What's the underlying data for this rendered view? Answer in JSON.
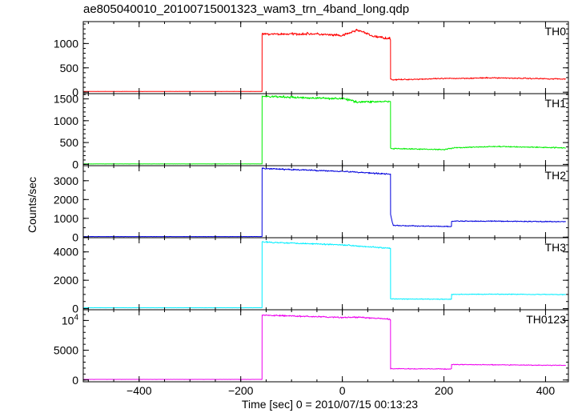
{
  "title": "ae805040010_20100715001323_wam3_trn_4band_long.qdp",
  "chart_data": {
    "type": "line",
    "xlabel": "Time [sec] 0 = 2010/07/15 00:13:23",
    "ylabel": "Counts/sec",
    "xlim": [
      -510,
      445
    ],
    "xticks": [
      {
        "value": -400,
        "label": "−400"
      },
      {
        "value": -200,
        "label": "−200"
      },
      {
        "value": 0,
        "label": "0"
      },
      {
        "value": 200,
        "label": "200"
      },
      {
        "value": 400,
        "label": "400"
      }
    ],
    "grid": false,
    "panels": [
      {
        "name": "TH0",
        "color": "#ff0000",
        "ylim": [
          -30,
          1450
        ],
        "yticks": [
          {
            "value": 0,
            "label": "0"
          },
          {
            "value": 500,
            "label": "500"
          },
          {
            "value": 1000,
            "label": "1000"
          }
        ],
        "segments": [
          {
            "x": [
              -510,
              -158
            ],
            "y": [
              15,
              15
            ],
            "noise": 2
          },
          {
            "x": [
              -158,
              -60,
              0,
              30,
              60,
              95
            ],
            "y": [
              1190,
              1200,
              1160,
              1280,
              1150,
              1100
            ],
            "noise": 25
          },
          {
            "x": [
              95,
              100,
              200,
              300,
              440
            ],
            "y": [
              270,
              255,
              280,
              295,
              270
            ],
            "noise": 12
          }
        ]
      },
      {
        "name": "TH1",
        "color": "#00ee00",
        "ylim": [
          -30,
          1620
        ],
        "yticks": [
          {
            "value": 0,
            "label": "0"
          },
          {
            "value": 500,
            "label": "500"
          },
          {
            "value": 1000,
            "label": "1000"
          },
          {
            "value": 1500,
            "label": "1500"
          }
        ],
        "segments": [
          {
            "x": [
              -510,
              -158
            ],
            "y": [
              10,
              10
            ],
            "noise": 2
          },
          {
            "x": [
              -158,
              -60,
              0,
              30,
              95
            ],
            "y": [
              1560,
              1520,
              1510,
              1430,
              1440
            ],
            "noise": 25
          },
          {
            "x": [
              95,
              200,
              220,
              300,
              440
            ],
            "y": [
              360,
              340,
              380,
              410,
              380
            ],
            "noise": 12
          }
        ]
      },
      {
        "name": "TH2",
        "color": "#0000dd",
        "ylim": [
          -30,
          3800
        ],
        "yticks": [
          {
            "value": 0,
            "label": "0"
          },
          {
            "value": 1000,
            "label": "1000"
          },
          {
            "value": 2000,
            "label": "2000"
          },
          {
            "value": 3000,
            "label": "3000"
          }
        ],
        "segments": [
          {
            "x": [
              -510,
              -158
            ],
            "y": [
              30,
              30
            ],
            "noise": 4
          },
          {
            "x": [
              -158,
              0,
              95
            ],
            "y": [
              3650,
              3500,
              3350
            ],
            "noise": 35
          },
          {
            "x": [
              95,
              100,
              215
            ],
            "y": [
              1200,
              620,
              560
            ],
            "noise": 25
          },
          {
            "x": [
              215,
              300,
              440
            ],
            "y": [
              850,
              850,
              820
            ],
            "noise": 25
          }
        ]
      },
      {
        "name": "TH3",
        "color": "#00eeff",
        "ylim": [
          -80,
          5000
        ],
        "yticks": [
          {
            "value": 0,
            "label": "0"
          },
          {
            "value": 2000,
            "label": "2000"
          },
          {
            "value": 4000,
            "label": "4000"
          }
        ],
        "segments": [
          {
            "x": [
              -510,
              -158
            ],
            "y": [
              60,
              60
            ],
            "noise": 5
          },
          {
            "x": [
              -158,
              0,
              95
            ],
            "y": [
              4700,
              4500,
              4250
            ],
            "noise": 45
          },
          {
            "x": [
              95,
              215
            ],
            "y": [
              680,
              660
            ],
            "noise": 25
          },
          {
            "x": [
              215,
              300,
              440
            ],
            "y": [
              1000,
              1020,
              990
            ],
            "noise": 25
          }
        ]
      },
      {
        "name": "TH0123",
        "color": "#ee00ee",
        "ylim": [
          -300,
          11800
        ],
        "yticks": [
          {
            "value": 0,
            "label": "0"
          },
          {
            "value": 5000,
            "label": "5000"
          }
        ],
        "yticks_power": [
          {
            "value": 10000,
            "base": "10",
            "exp": "4"
          }
        ],
        "segments": [
          {
            "x": [
              -510,
              -158
            ],
            "y": [
              100,
              100
            ],
            "noise": 8
          },
          {
            "x": [
              -158,
              0,
              30,
              95
            ],
            "y": [
              10900,
              10500,
              10550,
              10200
            ],
            "noise": 110
          },
          {
            "x": [
              95,
              215
            ],
            "y": [
              1900,
              1850
            ],
            "noise": 60
          },
          {
            "x": [
              215,
              300,
              440
            ],
            "y": [
              2600,
              2550,
              2450
            ],
            "noise": 60
          }
        ]
      }
    ]
  }
}
